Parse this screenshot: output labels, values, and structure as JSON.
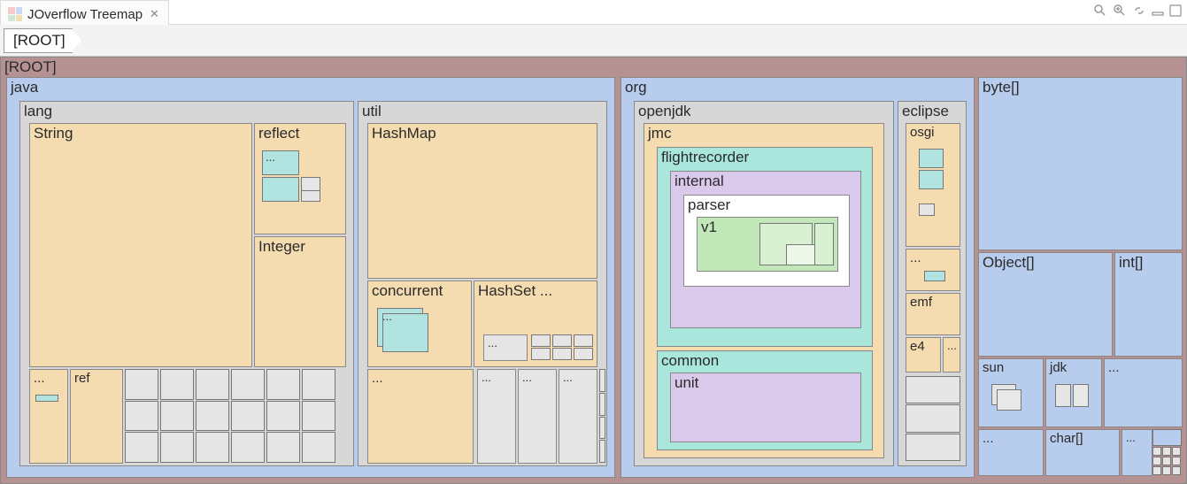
{
  "tab": {
    "title": "JOverflow Treemap",
    "close_glyph": "✕"
  },
  "breadcrumb": {
    "root": "[ROOT]"
  },
  "colors": {
    "root": "#b59191",
    "blue": "#b8cced",
    "beige": "#d7d7d7",
    "peach": "#f4dcb0",
    "cyan": "#a9e6db",
    "lilac": "#dbc9ec",
    "white": "#ffffff",
    "mint": "#c2e7b9",
    "grey": "#d2d2d2",
    "ltgrey": "#e5e5e5",
    "thumb_cyan": "#b1e4e0"
  },
  "labels": {
    "root": "[ROOT]",
    "java": "java",
    "lang": "lang",
    "string": "String",
    "reflect": "reflect",
    "integer": "Integer",
    "ref": "ref",
    "util": "util",
    "hashmap": "HashMap",
    "concurrent": "concurrent",
    "hashset": "HashSet ...",
    "org": "org",
    "openjdk": "openjdk",
    "jmc": "jmc",
    "flightrecorder": "flightrecorder",
    "internal": "internal",
    "parser": "parser",
    "v1": "v1",
    "common": "common",
    "unit": "unit",
    "eclipse": "eclipse",
    "osgi": "osgi",
    "emf": "emf",
    "e4": "e4",
    "byte": "byte[]",
    "object": "Object[]",
    "int": "int[]",
    "sun": "sun",
    "jdk": "jdk",
    "char": "char[]",
    "dots": "..."
  }
}
